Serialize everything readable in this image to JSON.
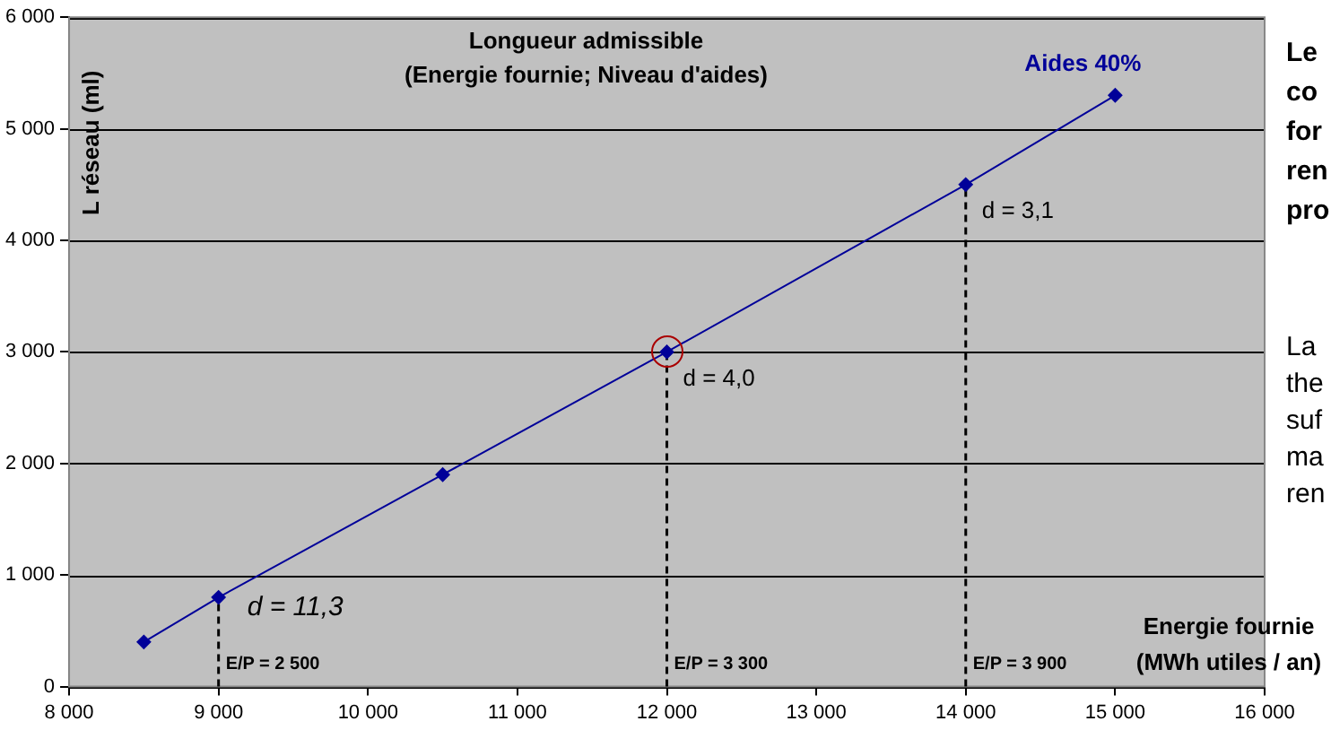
{
  "chart_data": {
    "type": "line",
    "title": "Longueur admissible\n(Energie fournie; Niveau d'aides)",
    "xlabel": "Energie fournie\n(MWh utiles / an)",
    "ylabel": "L réseau (ml)",
    "x": [
      8500,
      9000,
      10500,
      12000,
      14000,
      15000
    ],
    "series": [
      {
        "name": "Aides 40%",
        "color": "#000099",
        "values": [
          400,
          800,
          1900,
          3000,
          4500,
          5300
        ]
      }
    ],
    "xlim": [
      8000,
      16000
    ],
    "xticks": [
      {
        "value": 8000,
        "label": "8 000"
      },
      {
        "value": 9000,
        "label": "9 000"
      },
      {
        "value": 10000,
        "label": "10 000"
      },
      {
        "value": 11000,
        "label": "11 000"
      },
      {
        "value": 12000,
        "label": "12 000"
      },
      {
        "value": 13000,
        "label": "13 000"
      },
      {
        "value": 14000,
        "label": "14 000"
      },
      {
        "value": 15000,
        "label": "15 000"
      },
      {
        "value": 16000,
        "label": "16 000"
      }
    ],
    "ylim": [
      0,
      6000
    ],
    "yticks": [
      0,
      {
        "value": 1000,
        "label": "1 000"
      },
      {
        "value": 2000,
        "label": "2 000"
      },
      {
        "value": 3000,
        "label": "3 000"
      },
      {
        "value": 4000,
        "label": "4 000"
      },
      {
        "value": 5000,
        "label": "5 000"
      },
      {
        "value": 6000,
        "label": "6 000"
      }
    ],
    "ref_lines": [
      {
        "axis": "x",
        "value": 9000,
        "line_style": "dashed",
        "color": "#000000"
      },
      {
        "axis": "x",
        "value": 12000,
        "line_style": "dashed",
        "color": "#000000"
      },
      {
        "axis": "x",
        "value": 14000,
        "line_style": "dashed",
        "color": "#000000"
      }
    ],
    "annotations": [
      {
        "text": "d = 11,3",
        "x": 9000,
        "y": 800
      },
      {
        "text": "d = 4,0",
        "x": 12000,
        "y": 3000
      },
      {
        "text": "d = 3,1",
        "x": 14000,
        "y": 4500
      },
      {
        "text": "E/P = 2 500",
        "x": 9000,
        "y": 200
      },
      {
        "text": "E/P = 3 300",
        "x": 12000,
        "y": 200
      },
      {
        "text": "E/P = 3 900",
        "x": 14000,
        "y": 200
      },
      "Le\nco\nfor\nren\npro",
      "La\nthe\nsuf\nma\nren"
    ],
    "grid": "y",
    "legend": false,
    "marker": "diamond",
    "line_style": "solid"
  }
}
